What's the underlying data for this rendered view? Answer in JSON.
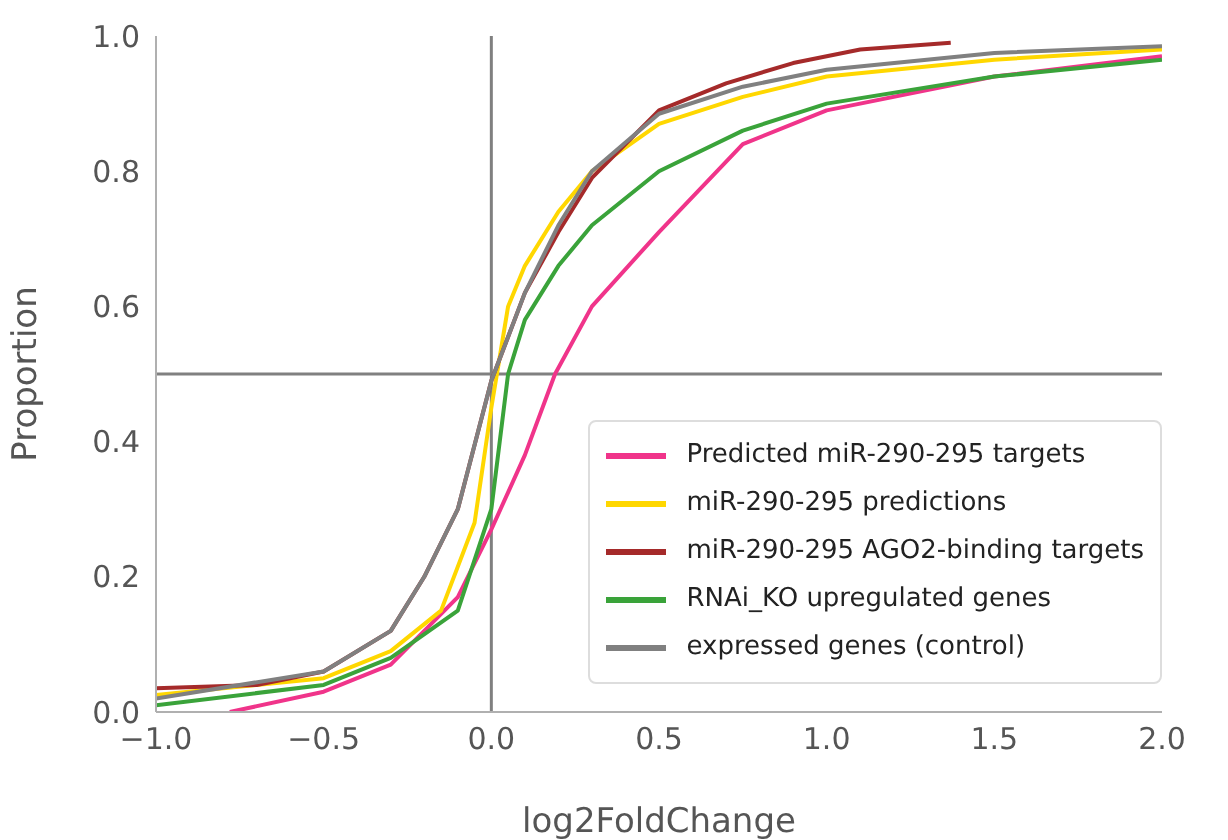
{
  "chart_data": {
    "type": "line",
    "xlabel": "log2FoldChange",
    "ylabel": "Proportion",
    "xlim": [
      -1,
      2
    ],
    "xticks": [
      {
        "value": -1,
        "label": "−1.0"
      },
      {
        "value": -0.5,
        "label": "−0.5"
      },
      {
        "value": 0,
        "label": "0.0"
      },
      {
        "value": 0.5,
        "label": "0.5"
      },
      {
        "value": 1,
        "label": "1.0"
      },
      {
        "value": 1.5,
        "label": "1.5"
      },
      {
        "value": 2,
        "label": "2.0"
      }
    ],
    "ylim": [
      0,
      1
    ],
    "yticks": [
      {
        "value": 0,
        "label": "0.0"
      },
      {
        "value": 0.2,
        "label": "0.2"
      },
      {
        "value": 0.4,
        "label": "0.4"
      },
      {
        "value": 0.6,
        "label": "0.6"
      },
      {
        "value": 0.8,
        "label": "0.8"
      },
      {
        "value": 1,
        "label": "1.0"
      }
    ],
    "grid": false,
    "legend": "bottom right",
    "marker": "none",
    "line_style": "solid",
    "ref_lines": [
      {
        "axis": "x",
        "value": 0,
        "color": "#808080"
      },
      {
        "axis": "y",
        "value": 0.5,
        "color": "#808080"
      }
    ],
    "series": [
      {
        "name": "Predicted miR-290-295 targets",
        "color": "#f0348a",
        "x": [
          -0.78,
          -0.5,
          -0.3,
          -0.1,
          0,
          0.1,
          0.19,
          0.3,
          0.5,
          0.75,
          1,
          1.5,
          2
        ],
        "values": [
          0,
          0.03,
          0.07,
          0.17,
          0.27,
          0.38,
          0.5,
          0.6,
          0.71,
          0.84,
          0.89,
          0.94,
          0.97
        ]
      },
      {
        "name": "miR-290-295 predictions",
        "color": "#ffd700",
        "x": [
          -1,
          -0.5,
          -0.3,
          -0.15,
          -0.05,
          0,
          0.05,
          0.1,
          0.2,
          0.3,
          0.5,
          0.75,
          1,
          1.5,
          2
        ],
        "values": [
          0.025,
          0.05,
          0.09,
          0.15,
          0.28,
          0.45,
          0.6,
          0.66,
          0.74,
          0.8,
          0.87,
          0.91,
          0.94,
          0.965,
          0.98
        ]
      },
      {
        "name": "miR-290-295 AGO2-binding targets",
        "color": "#a52a2a",
        "x": [
          -1,
          -0.7,
          -0.5,
          -0.3,
          -0.2,
          -0.1,
          0,
          0.1,
          0.2,
          0.3,
          0.5,
          0.7,
          0.9,
          1.1,
          1.37
        ],
        "values": [
          0.035,
          0.04,
          0.06,
          0.12,
          0.2,
          0.3,
          0.49,
          0.62,
          0.71,
          0.79,
          0.89,
          0.93,
          0.96,
          0.98,
          0.99
        ]
      },
      {
        "name": "RNAi_KO upregulated genes",
        "color": "#3aa33a",
        "x": [
          -1,
          -0.5,
          -0.3,
          -0.1,
          0,
          0.05,
          0.1,
          0.2,
          0.3,
          0.5,
          0.75,
          1,
          1.5,
          2
        ],
        "values": [
          0.01,
          0.04,
          0.08,
          0.15,
          0.3,
          0.5,
          0.58,
          0.66,
          0.72,
          0.8,
          0.86,
          0.9,
          0.94,
          0.965
        ]
      },
      {
        "name": "expressed genes (control)",
        "color": "#808080",
        "x": [
          -1,
          -0.5,
          -0.3,
          -0.2,
          -0.1,
          0,
          0.1,
          0.2,
          0.3,
          0.5,
          0.75,
          1,
          1.5,
          2
        ],
        "values": [
          0.02,
          0.06,
          0.12,
          0.2,
          0.3,
          0.49,
          0.62,
          0.72,
          0.8,
          0.885,
          0.925,
          0.95,
          0.975,
          0.985
        ]
      }
    ]
  }
}
